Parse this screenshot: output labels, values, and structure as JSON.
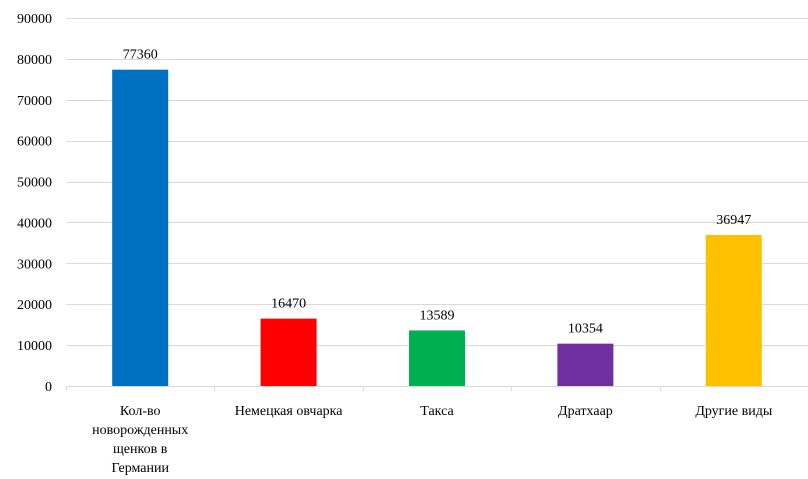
{
  "chart_data": {
    "type": "bar",
    "title": "",
    "xlabel": "",
    "ylabel": "",
    "ylim": [
      0,
      90000
    ],
    "yticks": [
      0,
      10000,
      20000,
      30000,
      40000,
      50000,
      60000,
      70000,
      80000,
      90000
    ],
    "grid": true,
    "legend": "none",
    "categories": [
      [
        "Кол-во",
        "новорожденных",
        "щенков в",
        "Германии"
      ],
      [
        "Немецкая овчарка"
      ],
      [
        "Такса"
      ],
      [
        "Дратхаар"
      ],
      [
        "Другие виды"
      ]
    ],
    "values": [
      77360,
      16470,
      13589,
      10354,
      36947
    ],
    "data_labels": [
      "77360",
      "16470",
      "13589",
      "10354",
      "36947"
    ],
    "colors": [
      "#0070C0",
      "#FF0000",
      "#00B050",
      "#7030A0",
      "#FFC000"
    ],
    "gridline_color": "#d9d9d9"
  }
}
